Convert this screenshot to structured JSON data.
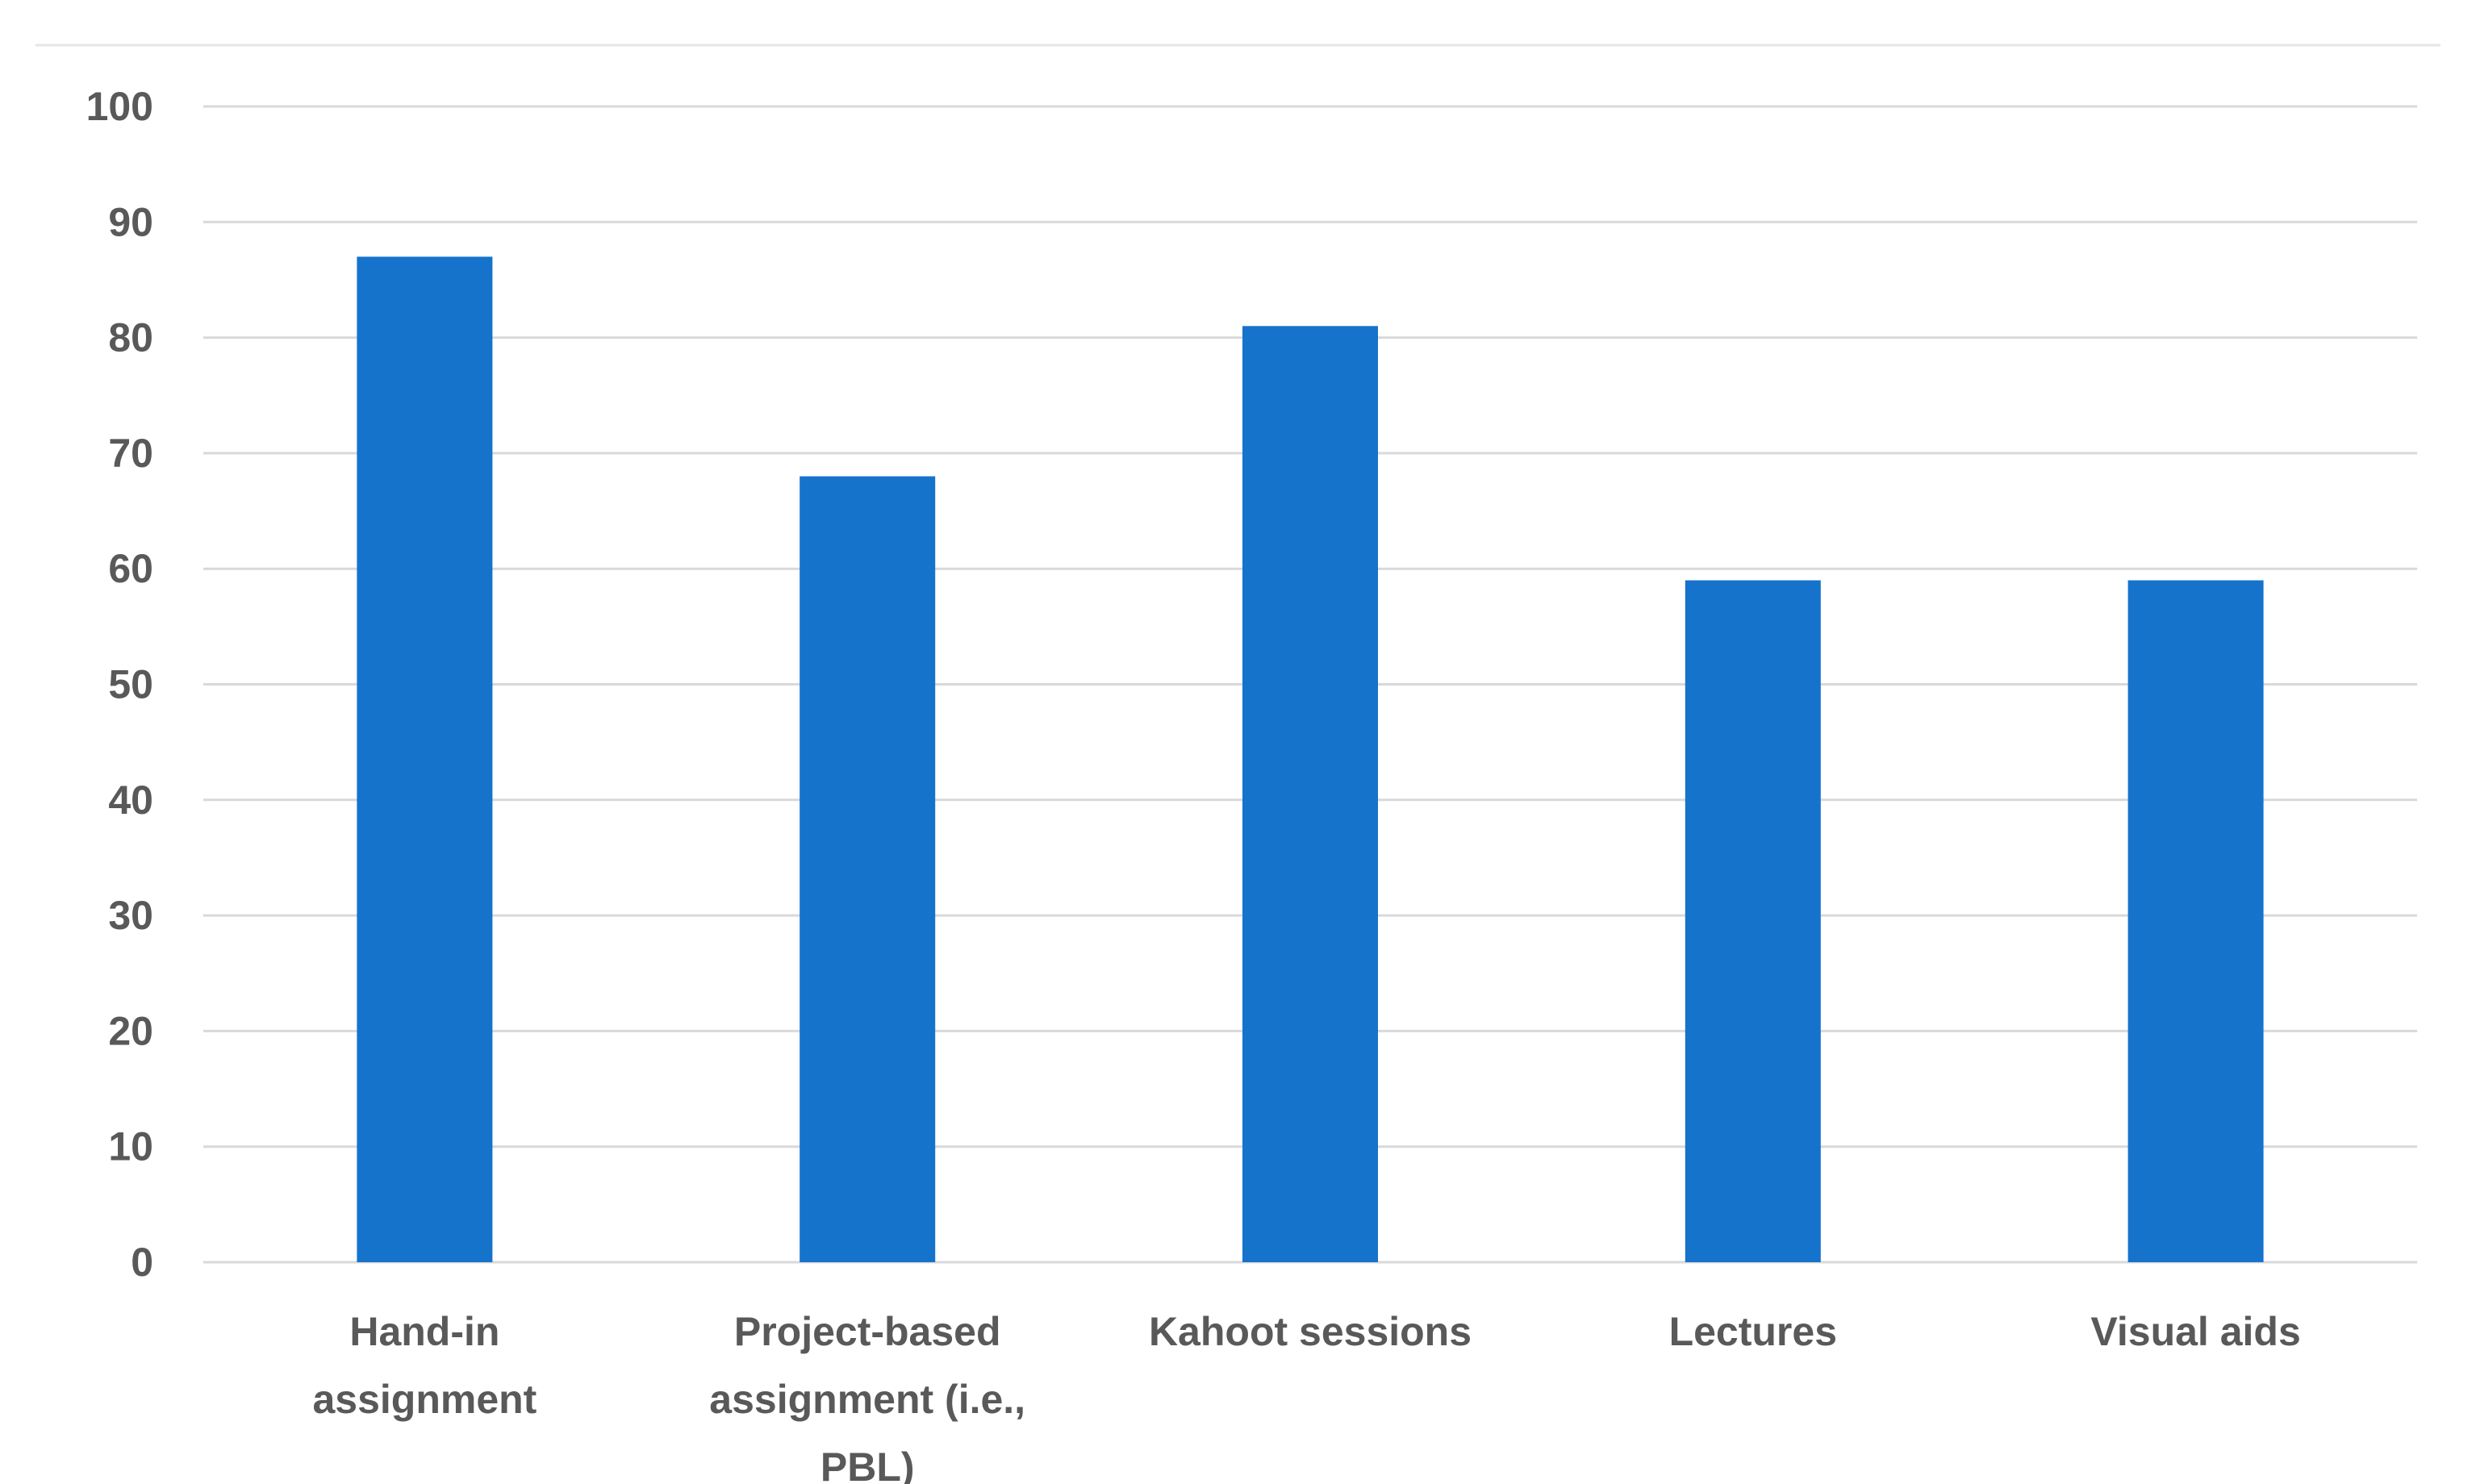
{
  "chart_data": {
    "type": "bar",
    "categories": [
      [
        "Hand-in",
        "assignment"
      ],
      [
        "Project-based",
        "assignment (i.e.,",
        "PBL)"
      ],
      [
        "Kahoot sessions"
      ],
      [
        "Lectures"
      ],
      [
        "Visual aids"
      ]
    ],
    "values": [
      87,
      68,
      81,
      59,
      59
    ],
    "ylim": [
      0,
      100
    ],
    "yticks": [
      0,
      10,
      20,
      30,
      40,
      50,
      60,
      70,
      80,
      90,
      100
    ],
    "grid": true,
    "legend": "none",
    "colors": {
      "bar": "#1573CC",
      "grid": "#D9D9D9",
      "text": "#595959",
      "frame": "#E6E6E6"
    }
  }
}
